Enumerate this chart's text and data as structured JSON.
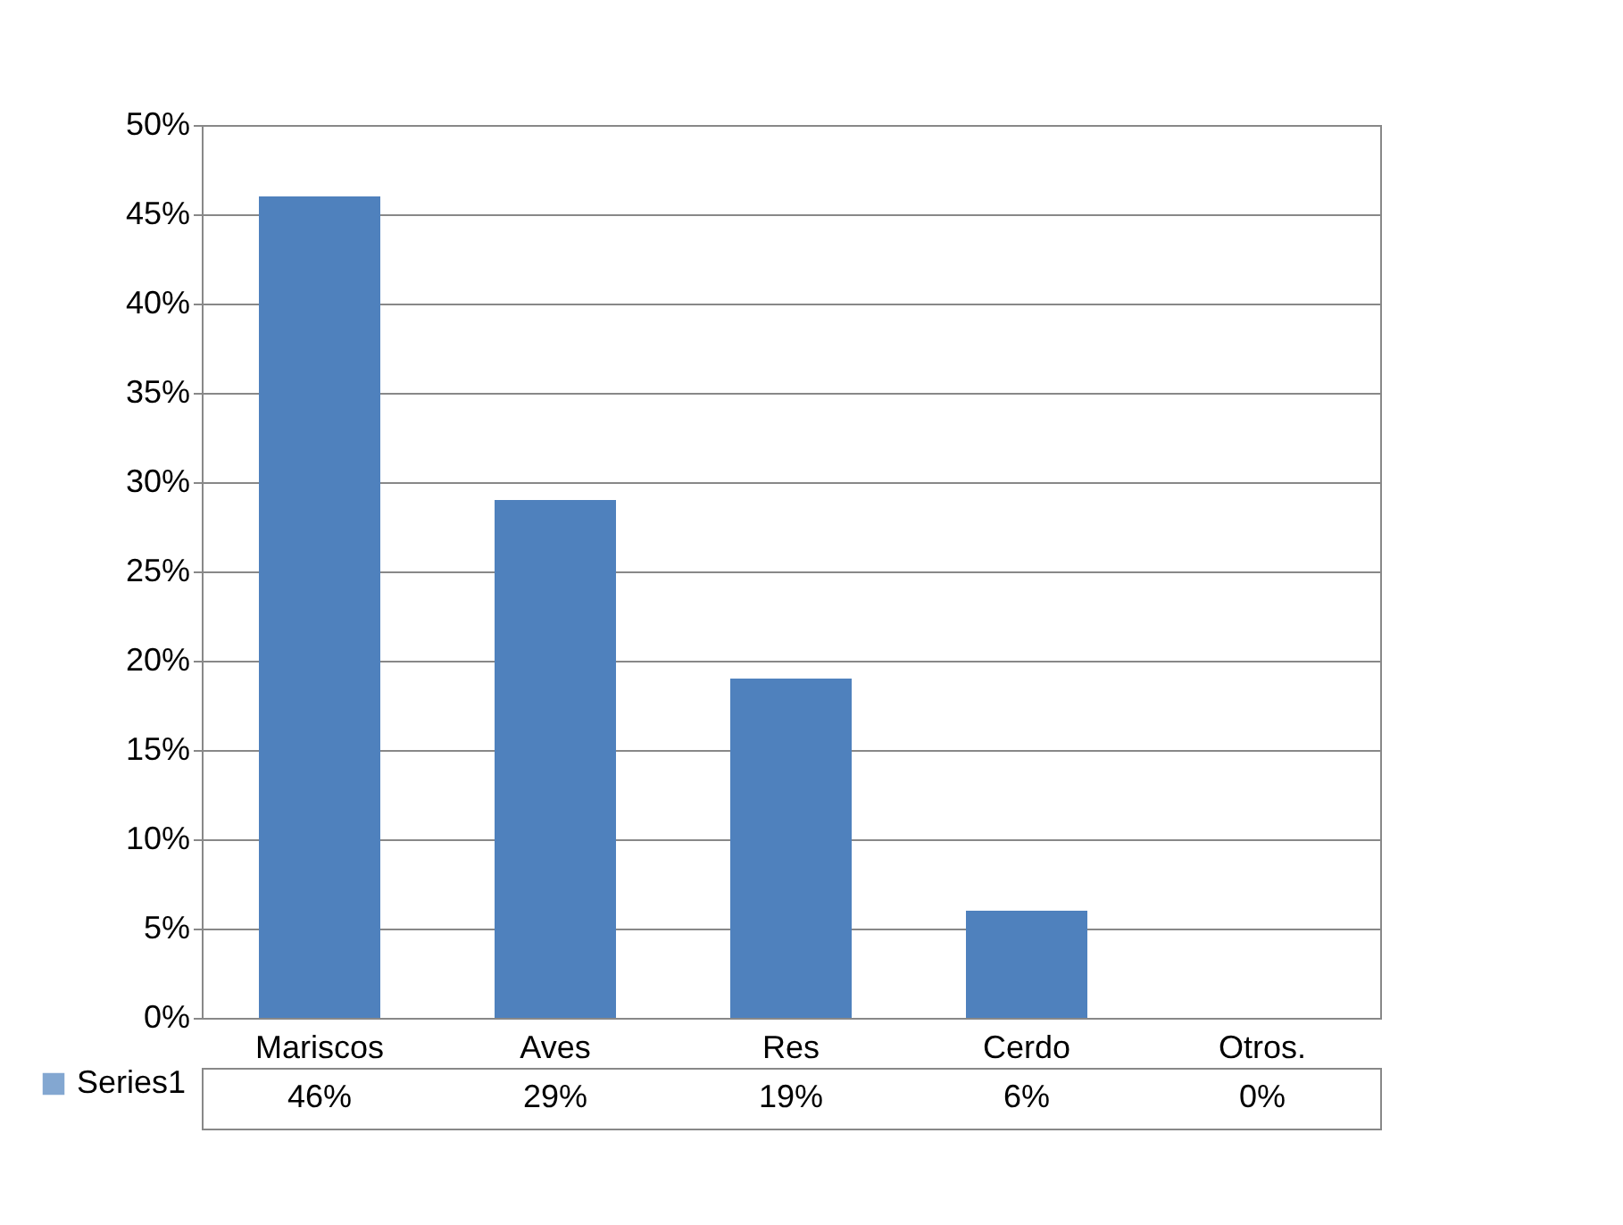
{
  "chart_data": {
    "type": "bar",
    "categories": [
      "Mariscos",
      "Aves",
      "Res",
      "Cerdo",
      "Otros."
    ],
    "series": [
      {
        "name": "Series1",
        "color": "#4f81bd",
        "values": [
          46,
          29,
          19,
          6,
          0
        ],
        "value_labels": [
          "46%",
          "29%",
          "19%",
          "6%",
          "0%"
        ]
      }
    ],
    "ylim": [
      0,
      50
    ],
    "yticks": [
      {
        "value": 0,
        "label": "0%"
      },
      {
        "value": 5,
        "label": "5%"
      },
      {
        "value": 10,
        "label": "10%"
      },
      {
        "value": 15,
        "label": "15%"
      },
      {
        "value": 20,
        "label": "20%"
      },
      {
        "value": 25,
        "label": "25%"
      },
      {
        "value": 30,
        "label": "30%"
      },
      {
        "value": 35,
        "label": "35%"
      },
      {
        "value": 40,
        "label": "40%"
      },
      {
        "value": 45,
        "label": "45%"
      },
      {
        "value": 50,
        "label": "50%"
      }
    ],
    "grid": "y",
    "legend": "bottom left"
  }
}
